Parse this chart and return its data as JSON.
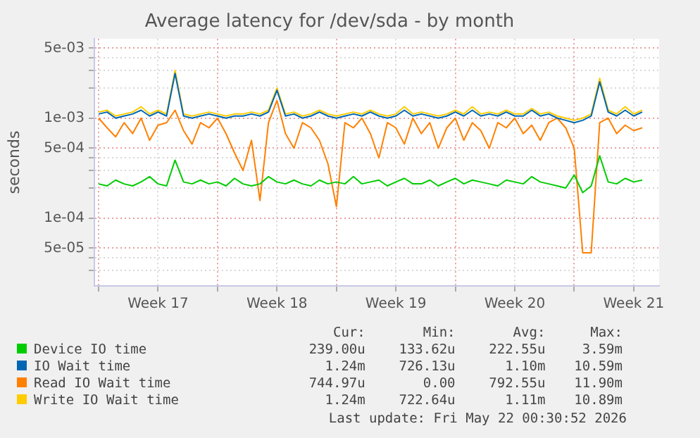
{
  "chart_data": {
    "type": "line",
    "title": "Average latency for /dev/sda - by month",
    "ylabel": "seconds",
    "x": [
      "2026-04-20T00:00",
      "2026-04-20T12:00",
      "2026-04-21T00:00",
      "2026-04-21T12:00",
      "2026-04-22T00:00",
      "2026-04-22T12:00",
      "2026-04-23T00:00",
      "2026-04-23T12:00",
      "2026-04-24T00:00",
      "2026-04-24T12:00",
      "2026-04-25T00:00",
      "2026-04-25T12:00",
      "2026-04-26T00:00",
      "2026-04-26T12:00",
      "2026-04-27T00:00",
      "2026-04-27T12:00",
      "2026-04-28T00:00",
      "2026-04-28T12:00",
      "2026-04-29T00:00",
      "2026-04-29T12:00",
      "2026-04-30T00:00",
      "2026-04-30T12:00",
      "2026-05-01T00:00",
      "2026-05-01T12:00",
      "2026-05-02T00:00",
      "2026-05-02T12:00",
      "2026-05-03T00:00",
      "2026-05-03T12:00",
      "2026-05-04T00:00",
      "2026-05-04T12:00",
      "2026-05-05T00:00",
      "2026-05-05T12:00",
      "2026-05-06T00:00",
      "2026-05-06T12:00",
      "2026-05-07T00:00",
      "2026-05-07T12:00",
      "2026-05-08T00:00",
      "2026-05-08T12:00",
      "2026-05-09T00:00",
      "2026-05-09T12:00",
      "2026-05-10T00:00",
      "2026-05-10T12:00",
      "2026-05-11T00:00",
      "2026-05-11T12:00",
      "2026-05-12T00:00",
      "2026-05-12T12:00",
      "2026-05-13T00:00",
      "2026-05-13T12:00",
      "2026-05-14T00:00",
      "2026-05-14T12:00",
      "2026-05-15T00:00",
      "2026-05-15T12:00",
      "2026-05-16T00:00",
      "2026-05-16T12:00",
      "2026-05-17T00:00",
      "2026-05-17T12:00",
      "2026-05-18T00:00",
      "2026-05-18T12:00",
      "2026-05-19T00:00",
      "2026-05-19T12:00",
      "2026-05-20T00:00",
      "2026-05-20T12:00",
      "2026-05-21T00:00",
      "2026-05-21T12:00",
      "2026-05-22T00:00"
    ],
    "series": [
      {
        "name": "Device IO time",
        "color": "#00cc00",
        "values": [
          0.00022,
          0.00021,
          0.00024,
          0.00022,
          0.00021,
          0.00023,
          0.00026,
          0.00022,
          0.00021,
          0.00038,
          0.00023,
          0.00022,
          0.00024,
          0.00022,
          0.00023,
          0.00021,
          0.00025,
          0.00022,
          0.00021,
          0.00022,
          0.00026,
          0.00023,
          0.00022,
          0.00024,
          0.00022,
          0.00021,
          0.00024,
          0.00022,
          0.00023,
          0.00022,
          0.00026,
          0.00022,
          0.00023,
          0.00024,
          0.00021,
          0.00023,
          0.00025,
          0.00022,
          0.00022,
          0.00024,
          0.00021,
          0.00023,
          0.00025,
          0.00022,
          0.00024,
          0.00023,
          0.00022,
          0.00021,
          0.00024,
          0.00023,
          0.00022,
          0.00026,
          0.00023,
          0.00022,
          0.00021,
          0.0002,
          0.00027,
          0.00018,
          0.00021,
          0.00042,
          0.00023,
          0.00022,
          0.00025,
          0.00023,
          0.00024
        ]
      },
      {
        "name": "IO Wait time",
        "color": "#0066b3",
        "values": [
          0.0011,
          0.00115,
          0.001,
          0.00105,
          0.0011,
          0.0012,
          0.00105,
          0.00115,
          0.00105,
          0.0028,
          0.00105,
          0.001,
          0.00105,
          0.0011,
          0.00105,
          0.001,
          0.00105,
          0.00105,
          0.0011,
          0.00105,
          0.00115,
          0.0019,
          0.00105,
          0.0011,
          0.001,
          0.00105,
          0.00115,
          0.00105,
          0.001,
          0.00105,
          0.0011,
          0.00105,
          0.00115,
          0.00105,
          0.001,
          0.00105,
          0.0012,
          0.00105,
          0.0011,
          0.00105,
          0.001,
          0.00105,
          0.00115,
          0.00105,
          0.0012,
          0.00105,
          0.0011,
          0.00105,
          0.00115,
          0.00105,
          0.00105,
          0.0012,
          0.00105,
          0.0011,
          0.001,
          0.00095,
          0.0009,
          0.00095,
          0.00105,
          0.0023,
          0.00115,
          0.00105,
          0.0012,
          0.00105,
          0.00115
        ]
      },
      {
        "name": "Read IO Wait time",
        "color": "#ff8000",
        "values": [
          0.001,
          0.0008,
          0.00065,
          0.0009,
          0.0007,
          0.001,
          0.0006,
          0.00085,
          0.0009,
          0.0012,
          0.00075,
          0.00055,
          0.0009,
          0.0008,
          0.001,
          0.0007,
          0.00045,
          0.0003,
          0.0006,
          0.00015,
          0.0009,
          0.0015,
          0.0007,
          0.0005,
          0.0009,
          0.0008,
          0.0006,
          0.00035,
          0.00013,
          0.0009,
          0.0008,
          0.001,
          0.0007,
          0.0004,
          0.0009,
          0.0008,
          0.00055,
          0.001,
          0.0007,
          0.0009,
          0.0005,
          0.0008,
          0.001,
          0.0006,
          0.0009,
          0.00075,
          0.0005,
          0.0009,
          0.0008,
          0.001,
          0.0007,
          0.00085,
          0.0006,
          0.0009,
          0.001,
          0.0008,
          0.0005,
          4.5e-05,
          4.5e-05,
          0.0009,
          0.001,
          0.0007,
          0.00085,
          0.00075,
          0.0008
        ]
      },
      {
        "name": "Write IO Wait time",
        "color": "#ffcc00",
        "values": [
          0.00115,
          0.0012,
          0.00105,
          0.0011,
          0.00115,
          0.0013,
          0.0011,
          0.0012,
          0.0011,
          0.003,
          0.0011,
          0.00105,
          0.0011,
          0.00115,
          0.0011,
          0.00105,
          0.0011,
          0.0011,
          0.00115,
          0.0011,
          0.0012,
          0.002,
          0.0011,
          0.00115,
          0.00105,
          0.0011,
          0.0012,
          0.0011,
          0.00105,
          0.0011,
          0.00115,
          0.0011,
          0.0012,
          0.0011,
          0.00105,
          0.0011,
          0.0013,
          0.0011,
          0.00115,
          0.0011,
          0.00105,
          0.0011,
          0.0012,
          0.0011,
          0.0013,
          0.0011,
          0.00115,
          0.0011,
          0.0012,
          0.0011,
          0.0011,
          0.00125,
          0.0011,
          0.00115,
          0.00105,
          0.001,
          0.00095,
          0.001,
          0.0011,
          0.0025,
          0.0012,
          0.0011,
          0.0013,
          0.0011,
          0.0012
        ]
      }
    ],
    "log": "y",
    "ylim": [
      2.1e-05,
      0.0062
    ],
    "yticks": [
      {
        "value": 3e-05,
        "label": null
      },
      {
        "value": 4e-05,
        "label": null
      },
      {
        "value": 5e-05,
        "label": "5e-05"
      },
      {
        "value": 0.0001,
        "label": "1e-04"
      },
      {
        "value": 0.0002,
        "label": null
      },
      {
        "value": 0.0003,
        "label": null
      },
      {
        "value": 0.0004,
        "label": null
      },
      {
        "value": 0.0005,
        "label": "5e-04"
      },
      {
        "value": 0.001,
        "label": "1e-03"
      },
      {
        "value": 0.002,
        "label": null
      },
      {
        "value": 0.003,
        "label": null
      },
      {
        "value": 0.004,
        "label": null
      },
      {
        "value": 0.005,
        "label": "5e-03"
      }
    ],
    "xlim": [
      "2026-04-19T18:00",
      "2026-05-23T00:00"
    ],
    "xticks": [
      {
        "value": "2026-04-20",
        "label": null
      },
      {
        "value": "2026-04-23T12:00",
        "label": "Week 17"
      },
      {
        "value": "2026-04-27",
        "label": null
      },
      {
        "value": "2026-04-30T12:00",
        "label": "Week 18"
      },
      {
        "value": "2026-05-04",
        "label": null
      },
      {
        "value": "2026-05-07T12:00",
        "label": "Week 19"
      },
      {
        "value": "2026-05-11",
        "label": null
      },
      {
        "value": "2026-05-14T12:00",
        "label": "Week 20"
      },
      {
        "value": "2026-05-18",
        "label": null
      },
      {
        "value": "2026-05-21T12:00",
        "label": "Week 21"
      }
    ],
    "grid": true,
    "legend": "bottom",
    "marker": "none",
    "line_style": "solid",
    "annotations": [
      "Cur:",
      "Min:",
      "Avg:",
      "Max:",
      "239.00u",
      "133.62u",
      "222.55u",
      "3.59m",
      "1.24m",
      "726.13u",
      "1.10m",
      "10.59m",
      "744.97u",
      "0.00",
      "792.55u",
      "11.90m",
      "1.24m",
      "722.64u",
      "1.11m",
      "10.89m",
      "Last update: Fri May 22 00:30:52 2026"
    ]
  }
}
